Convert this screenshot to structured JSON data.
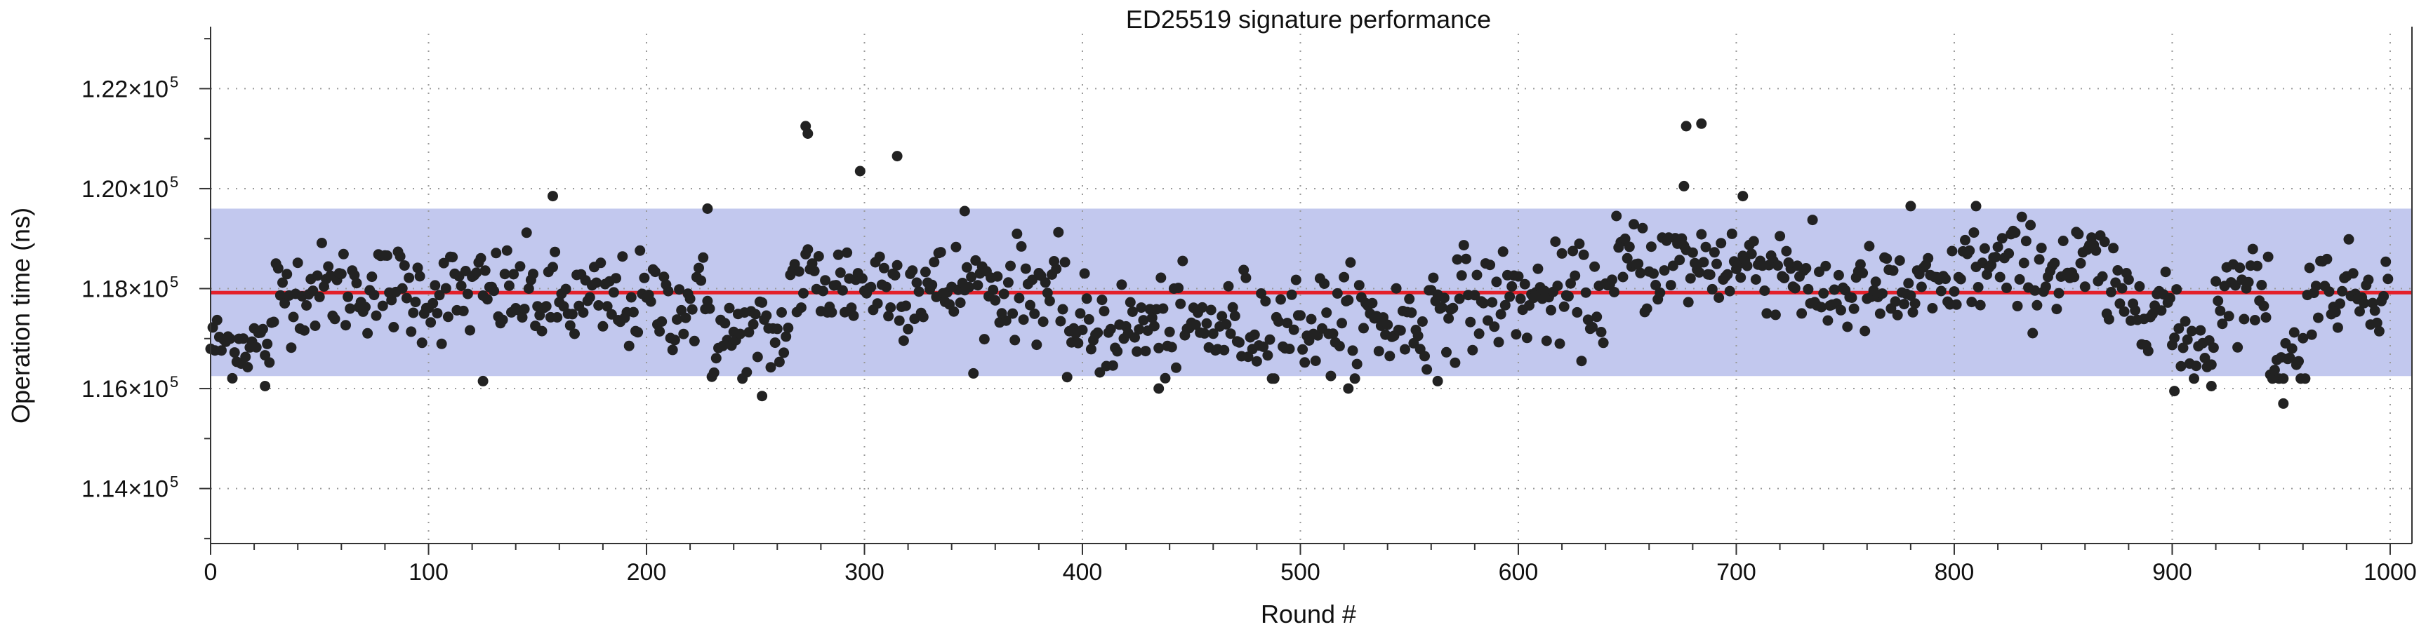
{
  "chart_data": {
    "type": "scatter",
    "title": "ED25519 signature performance",
    "xlabel": "Round #",
    "ylabel": "Operation time (ns)",
    "xlim": [
      0,
      1010
    ],
    "ylim": [
      112900,
      123100
    ],
    "x_ticks": [
      0,
      100,
      200,
      300,
      400,
      500,
      600,
      700,
      800,
      900,
      1000
    ],
    "y_ticks": [
      {
        "value": 114000,
        "mantissa": "1.14×10",
        "exponent": "5"
      },
      {
        "value": 116000,
        "mantissa": "1.16×10",
        "exponent": "5"
      },
      {
        "value": 118000,
        "mantissa": "1.18×10",
        "exponent": "5"
      },
      {
        "value": 120000,
        "mantissa": "1.20×10",
        "exponent": "5"
      },
      {
        "value": 122000,
        "mantissa": "1.22×10",
        "exponent": "5"
      }
    ],
    "grid": true,
    "mean_line": {
      "value": 117920,
      "color": "#e4202a"
    },
    "band": {
      "low": 116250,
      "high": 119600,
      "color": "#c2c8ee"
    },
    "point_color": "#222222",
    "notable_points": [
      {
        "x": 157,
        "y": 119850
      },
      {
        "x": 228,
        "y": 119600
      },
      {
        "x": 273,
        "y": 121250
      },
      {
        "x": 274,
        "y": 121100
      },
      {
        "x": 298,
        "y": 120350
      },
      {
        "x": 315,
        "y": 120650
      },
      {
        "x": 346,
        "y": 119550
      },
      {
        "x": 676,
        "y": 120050
      },
      {
        "x": 677,
        "y": 121250
      },
      {
        "x": 684,
        "y": 121300
      },
      {
        "x": 703,
        "y": 119850
      },
      {
        "x": 780,
        "y": 119650
      },
      {
        "x": 810,
        "y": 119650
      },
      {
        "x": 253,
        "y": 115850
      },
      {
        "x": 435,
        "y": 116000
      },
      {
        "x": 522,
        "y": 116000
      },
      {
        "x": 901,
        "y": 115950
      },
      {
        "x": 951,
        "y": 115700
      },
      {
        "x": 25,
        "y": 116050
      },
      {
        "x": 125,
        "y": 116150
      },
      {
        "x": 563,
        "y": 116150
      },
      {
        "x": 918,
        "y": 116050
      }
    ],
    "segments": [
      {
        "start": 0,
        "end": 30,
        "center": 116900,
        "spread": 450
      },
      {
        "start": 30,
        "end": 90,
        "center": 118000,
        "spread": 600
      },
      {
        "start": 90,
        "end": 150,
        "center": 117900,
        "spread": 650
      },
      {
        "start": 150,
        "end": 230,
        "center": 117700,
        "spread": 650
      },
      {
        "start": 230,
        "end": 265,
        "center": 117000,
        "spread": 650
      },
      {
        "start": 265,
        "end": 330,
        "center": 118100,
        "spread": 700
      },
      {
        "start": 330,
        "end": 390,
        "center": 118000,
        "spread": 650
      },
      {
        "start": 390,
        "end": 470,
        "center": 117200,
        "spread": 650
      },
      {
        "start": 470,
        "end": 560,
        "center": 117300,
        "spread": 700
      },
      {
        "start": 560,
        "end": 645,
        "center": 117800,
        "spread": 650
      },
      {
        "start": 645,
        "end": 730,
        "center": 118500,
        "spread": 650
      },
      {
        "start": 730,
        "end": 800,
        "center": 117900,
        "spread": 600
      },
      {
        "start": 800,
        "end": 870,
        "center": 118400,
        "spread": 650
      },
      {
        "start": 870,
        "end": 900,
        "center": 117800,
        "spread": 550
      },
      {
        "start": 900,
        "end": 920,
        "center": 116900,
        "spread": 600
      },
      {
        "start": 920,
        "end": 945,
        "center": 118000,
        "spread": 550
      },
      {
        "start": 945,
        "end": 962,
        "center": 116600,
        "spread": 550
      },
      {
        "start": 962,
        "end": 1000,
        "center": 118000,
        "spread": 550
      }
    ]
  }
}
